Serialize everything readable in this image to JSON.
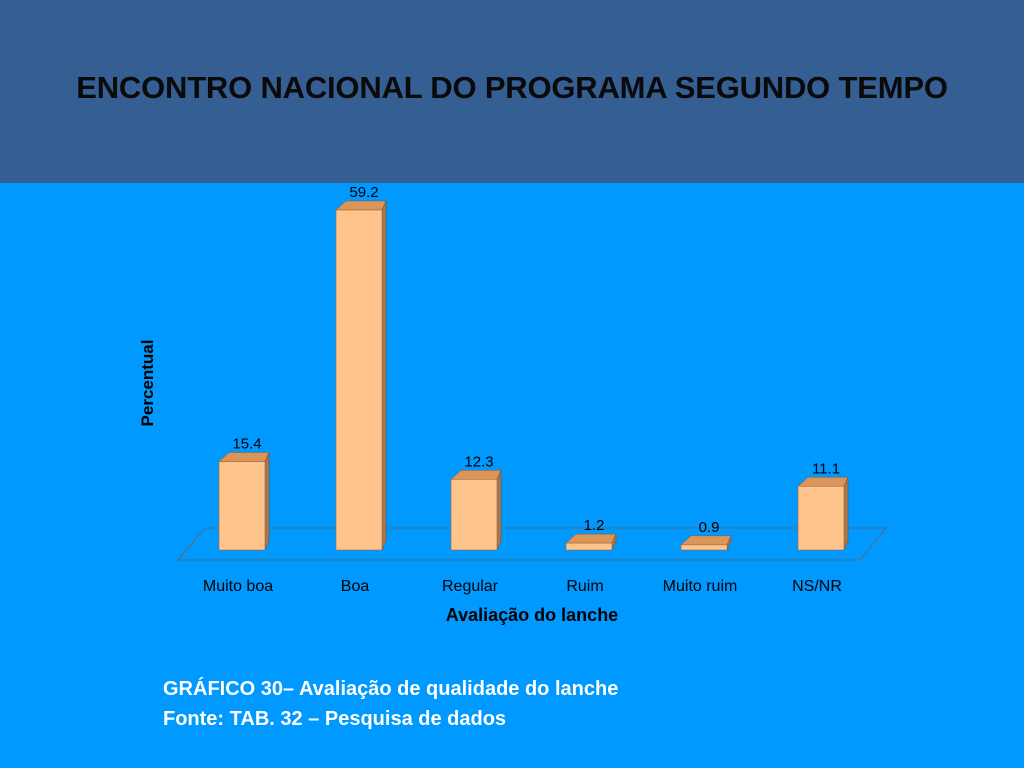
{
  "slide": {
    "title": "ENCONTRO NACIONAL DO PROGRAMA SEGUNDO TEMPO",
    "caption_line1": "GRÁFICO 30– Avaliação de qualidade do lanche",
    "caption_line2": "Fonte: TAB. 32 – Pesquisa de dados"
  },
  "chart_data": {
    "type": "bar",
    "categories": [
      "Muito boa",
      "Boa",
      "Regular",
      "Ruim",
      "Muito ruim",
      "NS/NR"
    ],
    "values": [
      15.4,
      59.2,
      12.3,
      1.2,
      0.9,
      11.1
    ],
    "data_labels": [
      "15.4",
      "59.2",
      "12.3",
      "1.2",
      "0.9",
      "11.1"
    ],
    "xlabel": "Avaliação do lanche",
    "ylabel": "Percentual",
    "ylim": [
      0,
      60
    ],
    "grid": false,
    "style": "3d-column",
    "colors": {
      "bar_front": "#ffc48c",
      "bar_top": "#d9955a",
      "bar_side": "#a8784c",
      "background": "#0099ff",
      "header": "#355e93"
    }
  }
}
